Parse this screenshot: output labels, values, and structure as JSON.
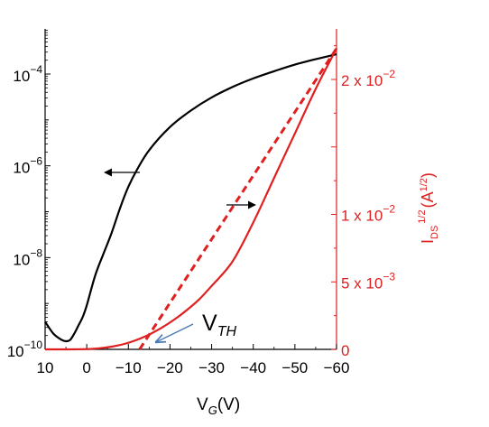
{
  "chart_data": {
    "type": "line",
    "title": "",
    "xlabel": {
      "main": "V",
      "sub": "G",
      "unit": "(V)"
    },
    "left_ylabel": "",
    "right_ylabel": {
      "main": "I",
      "sub": "DS",
      "sup": "1/2",
      "unit_pre": "(A",
      "unit_sup": "1/2",
      "unit_post": ")"
    },
    "xlim": [
      10,
      -60
    ],
    "x_ticks": [
      10,
      0,
      -10,
      -20,
      -30,
      -40,
      -50,
      -60
    ],
    "x_tick_labels": [
      "10",
      "0",
      "−10",
      "−20",
      "−30",
      "−40",
      "−50",
      "−60"
    ],
    "left_axis": {
      "scale": "log",
      "ylim": [
        1e-10,
        0.001
      ],
      "major_ticks": [
        1e-10,
        1e-08,
        1e-06,
        0.0001
      ],
      "tick_labels": [
        {
          "base": "10",
          "exp": "−10"
        },
        {
          "base": "10",
          "exp": "−8"
        },
        {
          "base": "10",
          "exp": "−6"
        },
        {
          "base": "10",
          "exp": "−4"
        }
      ]
    },
    "right_axis": {
      "scale": "linear",
      "color": "#e02020",
      "ylim": [
        0,
        0.0245
      ],
      "major_ticks": [
        0,
        0.005,
        0.01,
        0.02
      ],
      "tick_labels": [
        {
          "mant": "0",
          "exp": ""
        },
        {
          "mant": "5 x 10",
          "exp": "−3"
        },
        {
          "mant": "1 x 10",
          "exp": "−2"
        },
        {
          "mant": "2 x 10",
          "exp": "−2"
        }
      ]
    },
    "series": [
      {
        "axis": "left",
        "color": "#000000",
        "x": [
          10,
          8,
          6,
          5,
          4,
          3,
          2,
          1,
          0,
          -2,
          -4,
          -6,
          -8,
          -10,
          -12,
          -15,
          -20,
          -25,
          -30,
          -35,
          -40,
          -45,
          -50,
          -55,
          -60
        ],
        "y": [
          4e-10,
          2.2e-10,
          1.6e-10,
          1.5e-10,
          1.6e-10,
          2.2e-10,
          3.3e-10,
          5e-10,
          9e-10,
          4e-09,
          1.2e-08,
          3.5e-08,
          1.2e-07,
          3.5e-07,
          8e-07,
          2.2e-06,
          7e-06,
          1.6e-05,
          3.1e-05,
          5.2e-05,
          8e-05,
          0.000115,
          0.00016,
          0.00021,
          0.00027
        ]
      },
      {
        "axis": "right",
        "color": "#e02020",
        "x": [
          10,
          5,
          0,
          -3,
          -6,
          -9,
          -12,
          -15,
          -18,
          -21,
          -24,
          -27,
          -30,
          -35,
          -40,
          -45,
          -50,
          -55,
          -60
        ],
        "y": [
          0,
          0,
          2e-05,
          8e-05,
          0.0002,
          0.0004,
          0.0007,
          0.0011,
          0.0016,
          0.0022,
          0.0029,
          0.0037,
          0.0047,
          0.0065,
          0.0094,
          0.0127,
          0.016,
          0.0193,
          0.0223
        ]
      },
      {
        "axis": "right",
        "color": "#e02020",
        "dashed": true,
        "x": [
          -12.7,
          -60
        ],
        "y": [
          0,
          0.0223
        ]
      }
    ],
    "annotations": {
      "vth_label": {
        "main": "V",
        "sub": "TH"
      },
      "arrows": [
        {
          "direction": "left",
          "color": "#000000"
        },
        {
          "direction": "right",
          "color": "#000000"
        },
        {
          "direction": "down-left",
          "color": "#4a7ab5"
        }
      ]
    }
  }
}
